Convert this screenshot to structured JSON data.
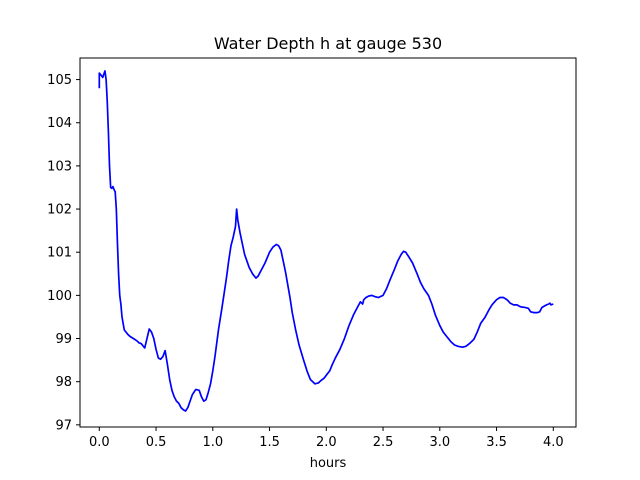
{
  "chart_data": {
    "type": "line",
    "title": "Water Depth h at gauge 530",
    "xlabel": "hours",
    "ylabel": "",
    "xlim": [
      -0.17,
      4.2
    ],
    "ylim": [
      96.95,
      105.5
    ],
    "xticks": [
      0.0,
      0.5,
      1.0,
      1.5,
      2.0,
      2.5,
      3.0,
      3.5,
      4.0
    ],
    "xtick_labels": [
      "0.0",
      "0.5",
      "1.0",
      "1.5",
      "2.0",
      "2.5",
      "3.0",
      "3.5",
      "4.0"
    ],
    "yticks": [
      97,
      98,
      99,
      100,
      101,
      102,
      103,
      104,
      105
    ],
    "ytick_labels": [
      "97",
      "98",
      "99",
      "100",
      "101",
      "102",
      "103",
      "104",
      "105"
    ],
    "grid": false,
    "series": [
      {
        "color": "#0000ff",
        "x": [
          0.0,
          0.0,
          0.01,
          0.03,
          0.05,
          0.06,
          0.07,
          0.08,
          0.09,
          0.1,
          0.11,
          0.12,
          0.13,
          0.14,
          0.15,
          0.16,
          0.17,
          0.18,
          0.19,
          0.2,
          0.22,
          0.25,
          0.27,
          0.3,
          0.33,
          0.35,
          0.37,
          0.4,
          0.42,
          0.44,
          0.46,
          0.48,
          0.5,
          0.52,
          0.54,
          0.56,
          0.58,
          0.6,
          0.62,
          0.64,
          0.66,
          0.68,
          0.7,
          0.72,
          0.74,
          0.76,
          0.78,
          0.8,
          0.82,
          0.85,
          0.88,
          0.9,
          0.92,
          0.94,
          0.96,
          0.98,
          1.0,
          1.02,
          1.05,
          1.08,
          1.1,
          1.12,
          1.14,
          1.16,
          1.18,
          1.2,
          1.21,
          1.22,
          1.23,
          1.24,
          1.26,
          1.28,
          1.3,
          1.32,
          1.35,
          1.38,
          1.4,
          1.43,
          1.46,
          1.5,
          1.53,
          1.56,
          1.58,
          1.6,
          1.62,
          1.64,
          1.66,
          1.68,
          1.7,
          1.73,
          1.76,
          1.8,
          1.83,
          1.86,
          1.9,
          1.93,
          1.95,
          1.98,
          2.0,
          2.03,
          2.05,
          2.08,
          2.12,
          2.16,
          2.2,
          2.24,
          2.28,
          2.3,
          2.32,
          2.33,
          2.35,
          2.37,
          2.4,
          2.43,
          2.46,
          2.5,
          2.53,
          2.56,
          2.6,
          2.63,
          2.66,
          2.68,
          2.7,
          2.73,
          2.76,
          2.8,
          2.83,
          2.86,
          2.9,
          2.93,
          2.96,
          3.0,
          3.03,
          3.06,
          3.1,
          3.13,
          3.16,
          3.2,
          3.23,
          3.26,
          3.3,
          3.33,
          3.36,
          3.4,
          3.43,
          3.46,
          3.5,
          3.53,
          3.56,
          3.58,
          3.6,
          3.62,
          3.65,
          3.68,
          3.7,
          3.72,
          3.75,
          3.78,
          3.8,
          3.83,
          3.86,
          3.88,
          3.9,
          3.92,
          3.94,
          3.96,
          3.97,
          3.98,
          4.0
        ],
        "y": [
          104.8,
          105.15,
          105.12,
          105.05,
          105.2,
          105.0,
          104.5,
          103.8,
          103.0,
          102.5,
          102.48,
          102.52,
          102.45,
          102.4,
          102.0,
          101.2,
          100.5,
          100.0,
          99.8,
          99.5,
          99.2,
          99.1,
          99.05,
          99.0,
          98.95,
          98.9,
          98.88,
          98.78,
          99.0,
          99.22,
          99.15,
          99.0,
          98.75,
          98.55,
          98.52,
          98.58,
          98.72,
          98.4,
          98.05,
          97.8,
          97.65,
          97.55,
          97.5,
          97.4,
          97.35,
          97.32,
          97.4,
          97.55,
          97.7,
          97.82,
          97.8,
          97.65,
          97.55,
          97.58,
          97.75,
          97.95,
          98.25,
          98.6,
          99.2,
          99.7,
          100.05,
          100.4,
          100.8,
          101.15,
          101.35,
          101.6,
          102.0,
          101.75,
          101.6,
          101.45,
          101.2,
          100.95,
          100.8,
          100.65,
          100.5,
          100.4,
          100.45,
          100.6,
          100.75,
          101.0,
          101.12,
          101.18,
          101.15,
          101.05,
          100.8,
          100.55,
          100.25,
          99.95,
          99.6,
          99.2,
          98.85,
          98.5,
          98.25,
          98.05,
          97.95,
          97.97,
          98.02,
          98.08,
          98.15,
          98.25,
          98.38,
          98.55,
          98.75,
          99.0,
          99.3,
          99.55,
          99.75,
          99.85,
          99.8,
          99.9,
          99.95,
          99.98,
          100.0,
          99.97,
          99.95,
          100.0,
          100.15,
          100.35,
          100.6,
          100.8,
          100.95,
          101.02,
          101.0,
          100.88,
          100.75,
          100.5,
          100.3,
          100.15,
          100.0,
          99.8,
          99.55,
          99.3,
          99.15,
          99.05,
          98.92,
          98.85,
          98.82,
          98.8,
          98.82,
          98.88,
          98.98,
          99.15,
          99.35,
          99.5,
          99.65,
          99.78,
          99.9,
          99.95,
          99.95,
          99.92,
          99.88,
          99.82,
          99.78,
          99.78,
          99.75,
          99.73,
          99.72,
          99.7,
          99.62,
          99.6,
          99.6,
          99.62,
          99.72,
          99.75,
          99.78,
          99.8,
          99.82,
          99.78,
          99.8
        ]
      }
    ]
  }
}
